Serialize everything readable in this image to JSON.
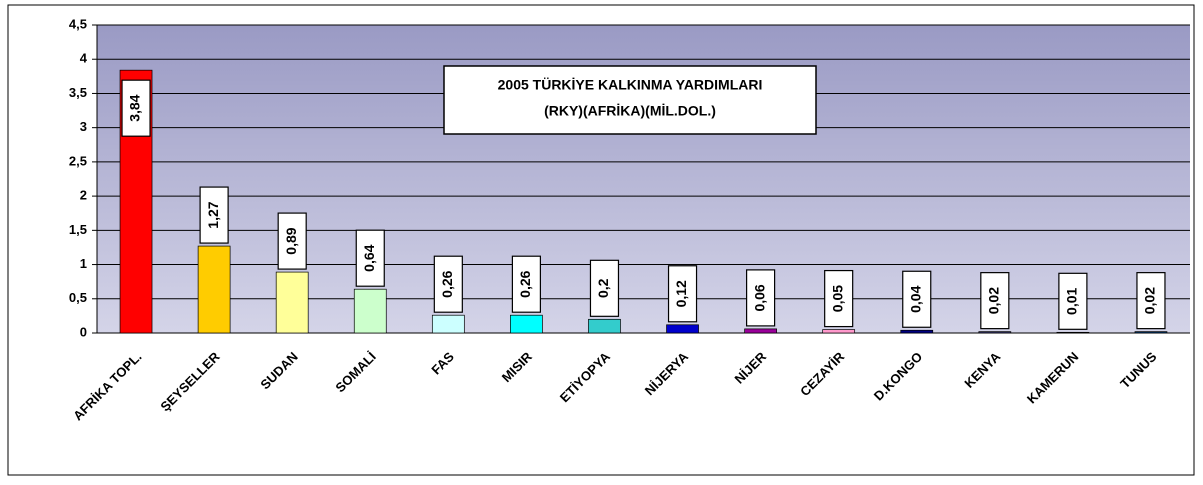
{
  "chart_data": {
    "type": "bar",
    "title": "2005 TÜRKİYE KALKINMA YARDIMLARI",
    "subtitle": "(RKY)(AFRİKA)(MİL.DOL.)",
    "categories": [
      "AFRİKA TOPL.",
      "ŞEYSELLER",
      "SUDAN",
      "SOMALİ",
      "FAS",
      "MISIR",
      "ETİYOPYA",
      "NİJERYA",
      "NİJER",
      "CEZAYİR",
      "D.KONGO",
      "KENYA",
      "KAMERUN",
      "TUNUS"
    ],
    "values": [
      3.84,
      1.27,
      0.89,
      0.64,
      0.26,
      0.26,
      0.2,
      0.12,
      0.06,
      0.05,
      0.04,
      0.02,
      0.01,
      0.02
    ],
    "value_labels": [
      "3,84",
      "1,27",
      "0,89",
      "0,64",
      "0,26",
      "0,26",
      "0,2",
      "0,12",
      "0,06",
      "0,05",
      "0,04",
      "0,02",
      "0,01",
      "0,02"
    ],
    "colors": [
      "#ff0000",
      "#ffcc00",
      "#ffff99",
      "#ccffcc",
      "#ccffff",
      "#00ffff",
      "#33cccc",
      "#0000cc",
      "#990099",
      "#ff99cc",
      "#000080",
      "#333366",
      "#666699",
      "#003366"
    ],
    "ylim": [
      0,
      4.5
    ],
    "yticks": [
      0,
      {
        "value": 0.5,
        "label": "0,5"
      },
      1,
      {
        "value": 1.5,
        "label": "1,5"
      },
      2,
      {
        "value": 2.5,
        "label": "2,5"
      },
      3,
      {
        "value": 3.5,
        "label": "3,5"
      },
      4,
      {
        "value": 4.5,
        "label": "4,5"
      }
    ],
    "grid": true
  }
}
